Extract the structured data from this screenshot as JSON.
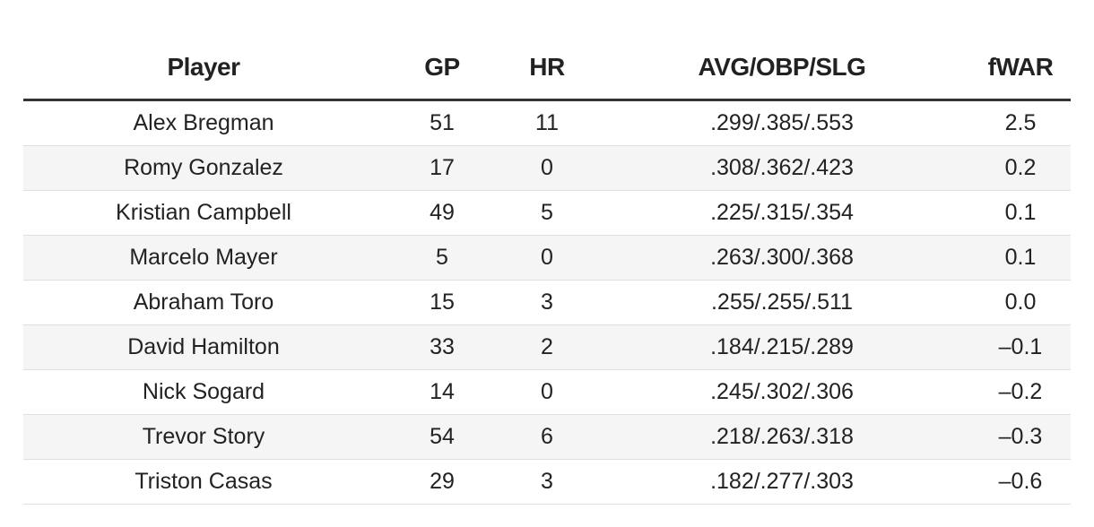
{
  "table": {
    "header": [
      "Player",
      "GP",
      "HR",
      "AVG/OBP/SLG",
      "fWAR"
    ],
    "rows": [
      [
        "Alex Bregman",
        "51",
        "11",
        ".299/.385/.553",
        "2.5"
      ],
      [
        "Romy Gonzalez",
        "17",
        "0",
        ".308/.362/.423",
        "0.2"
      ],
      [
        "Kristian Campbell",
        "49",
        "5",
        ".225/.315/.354",
        "0.1"
      ],
      [
        "Marcelo Mayer",
        "5",
        "0",
        ".263/.300/.368",
        "0.1"
      ],
      [
        "Abraham Toro",
        "15",
        "3",
        ".255/.255/.511",
        "0.0"
      ],
      [
        "David Hamilton",
        "33",
        "2",
        ".184/.215/.289",
        "–0.1"
      ],
      [
        "Nick Sogard",
        "14",
        "0",
        ".245/.302/.306",
        "–0.2"
      ],
      [
        "Trevor Story",
        "54",
        "6",
        ".218/.263/.318",
        "–0.3"
      ],
      [
        "Triston Casas",
        "29",
        "3",
        ".182/.277/.303",
        "–0.6"
      ]
    ]
  }
}
